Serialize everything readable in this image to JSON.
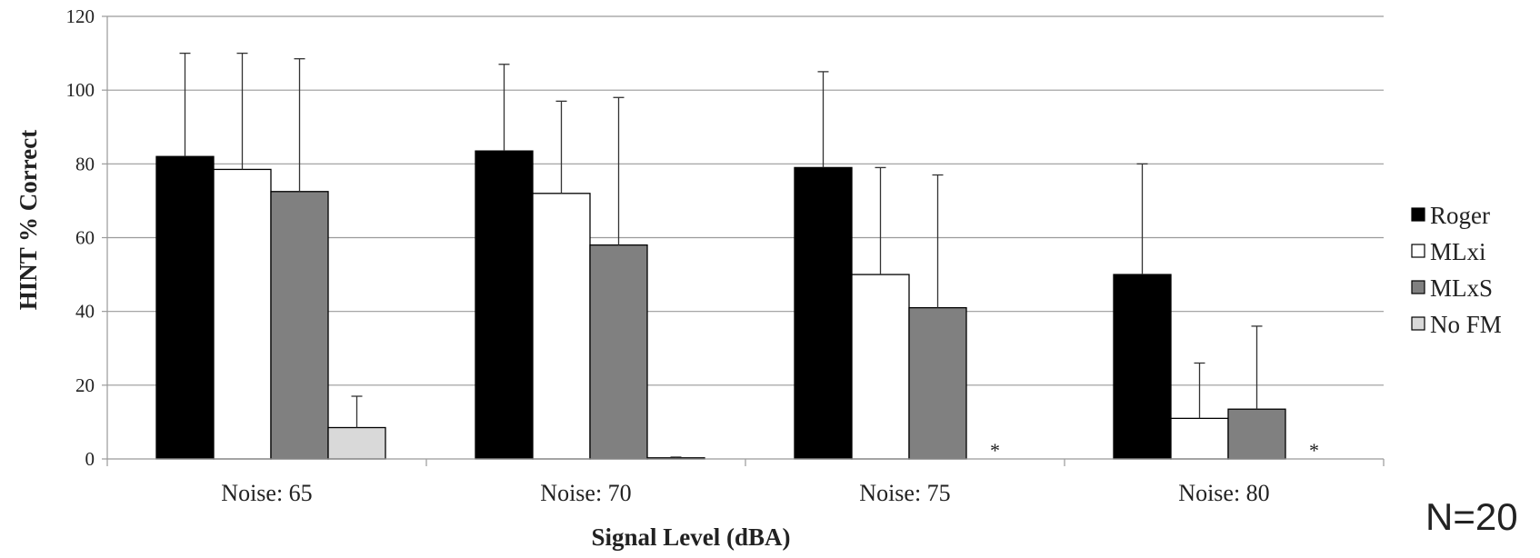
{
  "chart_data": {
    "type": "bar",
    "ylabel": "HINT % Correct",
    "xlabel": "Signal Level (dBA)",
    "ylim": [
      0,
      120
    ],
    "yticks": [
      0,
      20,
      40,
      60,
      80,
      100,
      120
    ],
    "grid": true,
    "legend_position": "right",
    "categories": [
      "Noise: 65",
      "Noise: 70",
      "Noise: 75",
      "Noise: 80"
    ],
    "series": [
      {
        "name": "Roger",
        "color": "#000000",
        "values": [
          82,
          83.5,
          79,
          50
        ],
        "error_upper": [
          110,
          107,
          105,
          80
        ]
      },
      {
        "name": "MLxi",
        "color": "#ffffff",
        "values": [
          78.5,
          72,
          50,
          11
        ],
        "error_upper": [
          110,
          97,
          79,
          26
        ]
      },
      {
        "name": "MLxS",
        "color": "#808080",
        "values": [
          72.5,
          58,
          41,
          13.5
        ],
        "error_upper": [
          108.5,
          98,
          77,
          36
        ]
      },
      {
        "name": "No FM",
        "color": "#d9d9d9",
        "values": [
          8.5,
          0.3,
          null,
          null
        ],
        "error_upper": [
          17,
          0.5,
          null,
          null
        ]
      }
    ],
    "missing_marker": "*",
    "note": "N=20"
  }
}
